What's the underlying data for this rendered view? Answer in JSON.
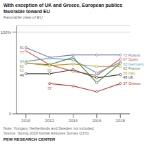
{
  "chart_data": {
    "type": "line",
    "title": [
      "With exception of UK and Greece, European publics",
      "favorable toward EU"
    ],
    "subtitle": "Favorable view of EU",
    "notes": [
      "Note: Hungary, Netherlands and Sweden not included.",
      "Source: Spring 2018 Global Attitudes Survey Q17d."
    ],
    "source": "PEW RESEARCH CENTER",
    "x": [
      2010,
      2012,
      2014,
      2016,
      2018
    ],
    "series": [
      {
        "name": "Poland",
        "color": "#7B6DAA",
        "values": [
          81,
          69,
          72,
          72,
          72
        ],
        "start_label": "81",
        "end_label": "72 Poland"
      },
      {
        "name": "Spain",
        "color": "#E05B3A",
        "values": [
          77,
          60,
          52,
          47,
          67
        ],
        "start_label": "77",
        "end_label": "67 Spain"
      },
      {
        "name": "Germany",
        "color": "#5B9BD5",
        "values": [
          64,
          68,
          66,
          50,
          63
        ],
        "start_label": "64",
        "end_label": "63 Germany"
      },
      {
        "name": "France",
        "color": "#4E8B3F",
        "values": [
          62,
          60,
          69,
          38,
          62
        ],
        "start_label": "62",
        "end_label": "62 France"
      },
      {
        "name": "Italy",
        "color": "#C8972A",
        "values": [
          62,
          59,
          61,
          58,
          58
        ],
        "start_label": "62",
        "end_label": "58 Italy"
      },
      {
        "name": "UK",
        "color": "#444444",
        "values": [
          49,
          49,
          54,
          44,
          48
        ],
        "start_label": "49",
        "end_label": "48 UK"
      },
      {
        "name": "Greece",
        "color": "#C0392B",
        "values": [
          null,
          37,
          34,
          27,
          37
        ],
        "end_label": "37 Greece"
      }
    ],
    "annotations": [
      {
        "series": "Italy",
        "x": 2012,
        "y": 59,
        "text": "59"
      },
      {
        "series": "Greece",
        "x": 2012,
        "y": 37,
        "text": "37"
      }
    ],
    "xlim": [
      2009.2,
      2018.8
    ],
    "xticks": [
      2010,
      2012,
      2014,
      2016,
      2018
    ],
    "ylim": [
      0,
      108
    ],
    "yticks": [
      0,
      {
        "value": 100,
        "label": "100%"
      }
    ],
    "grid": true,
    "marker": "o"
  }
}
